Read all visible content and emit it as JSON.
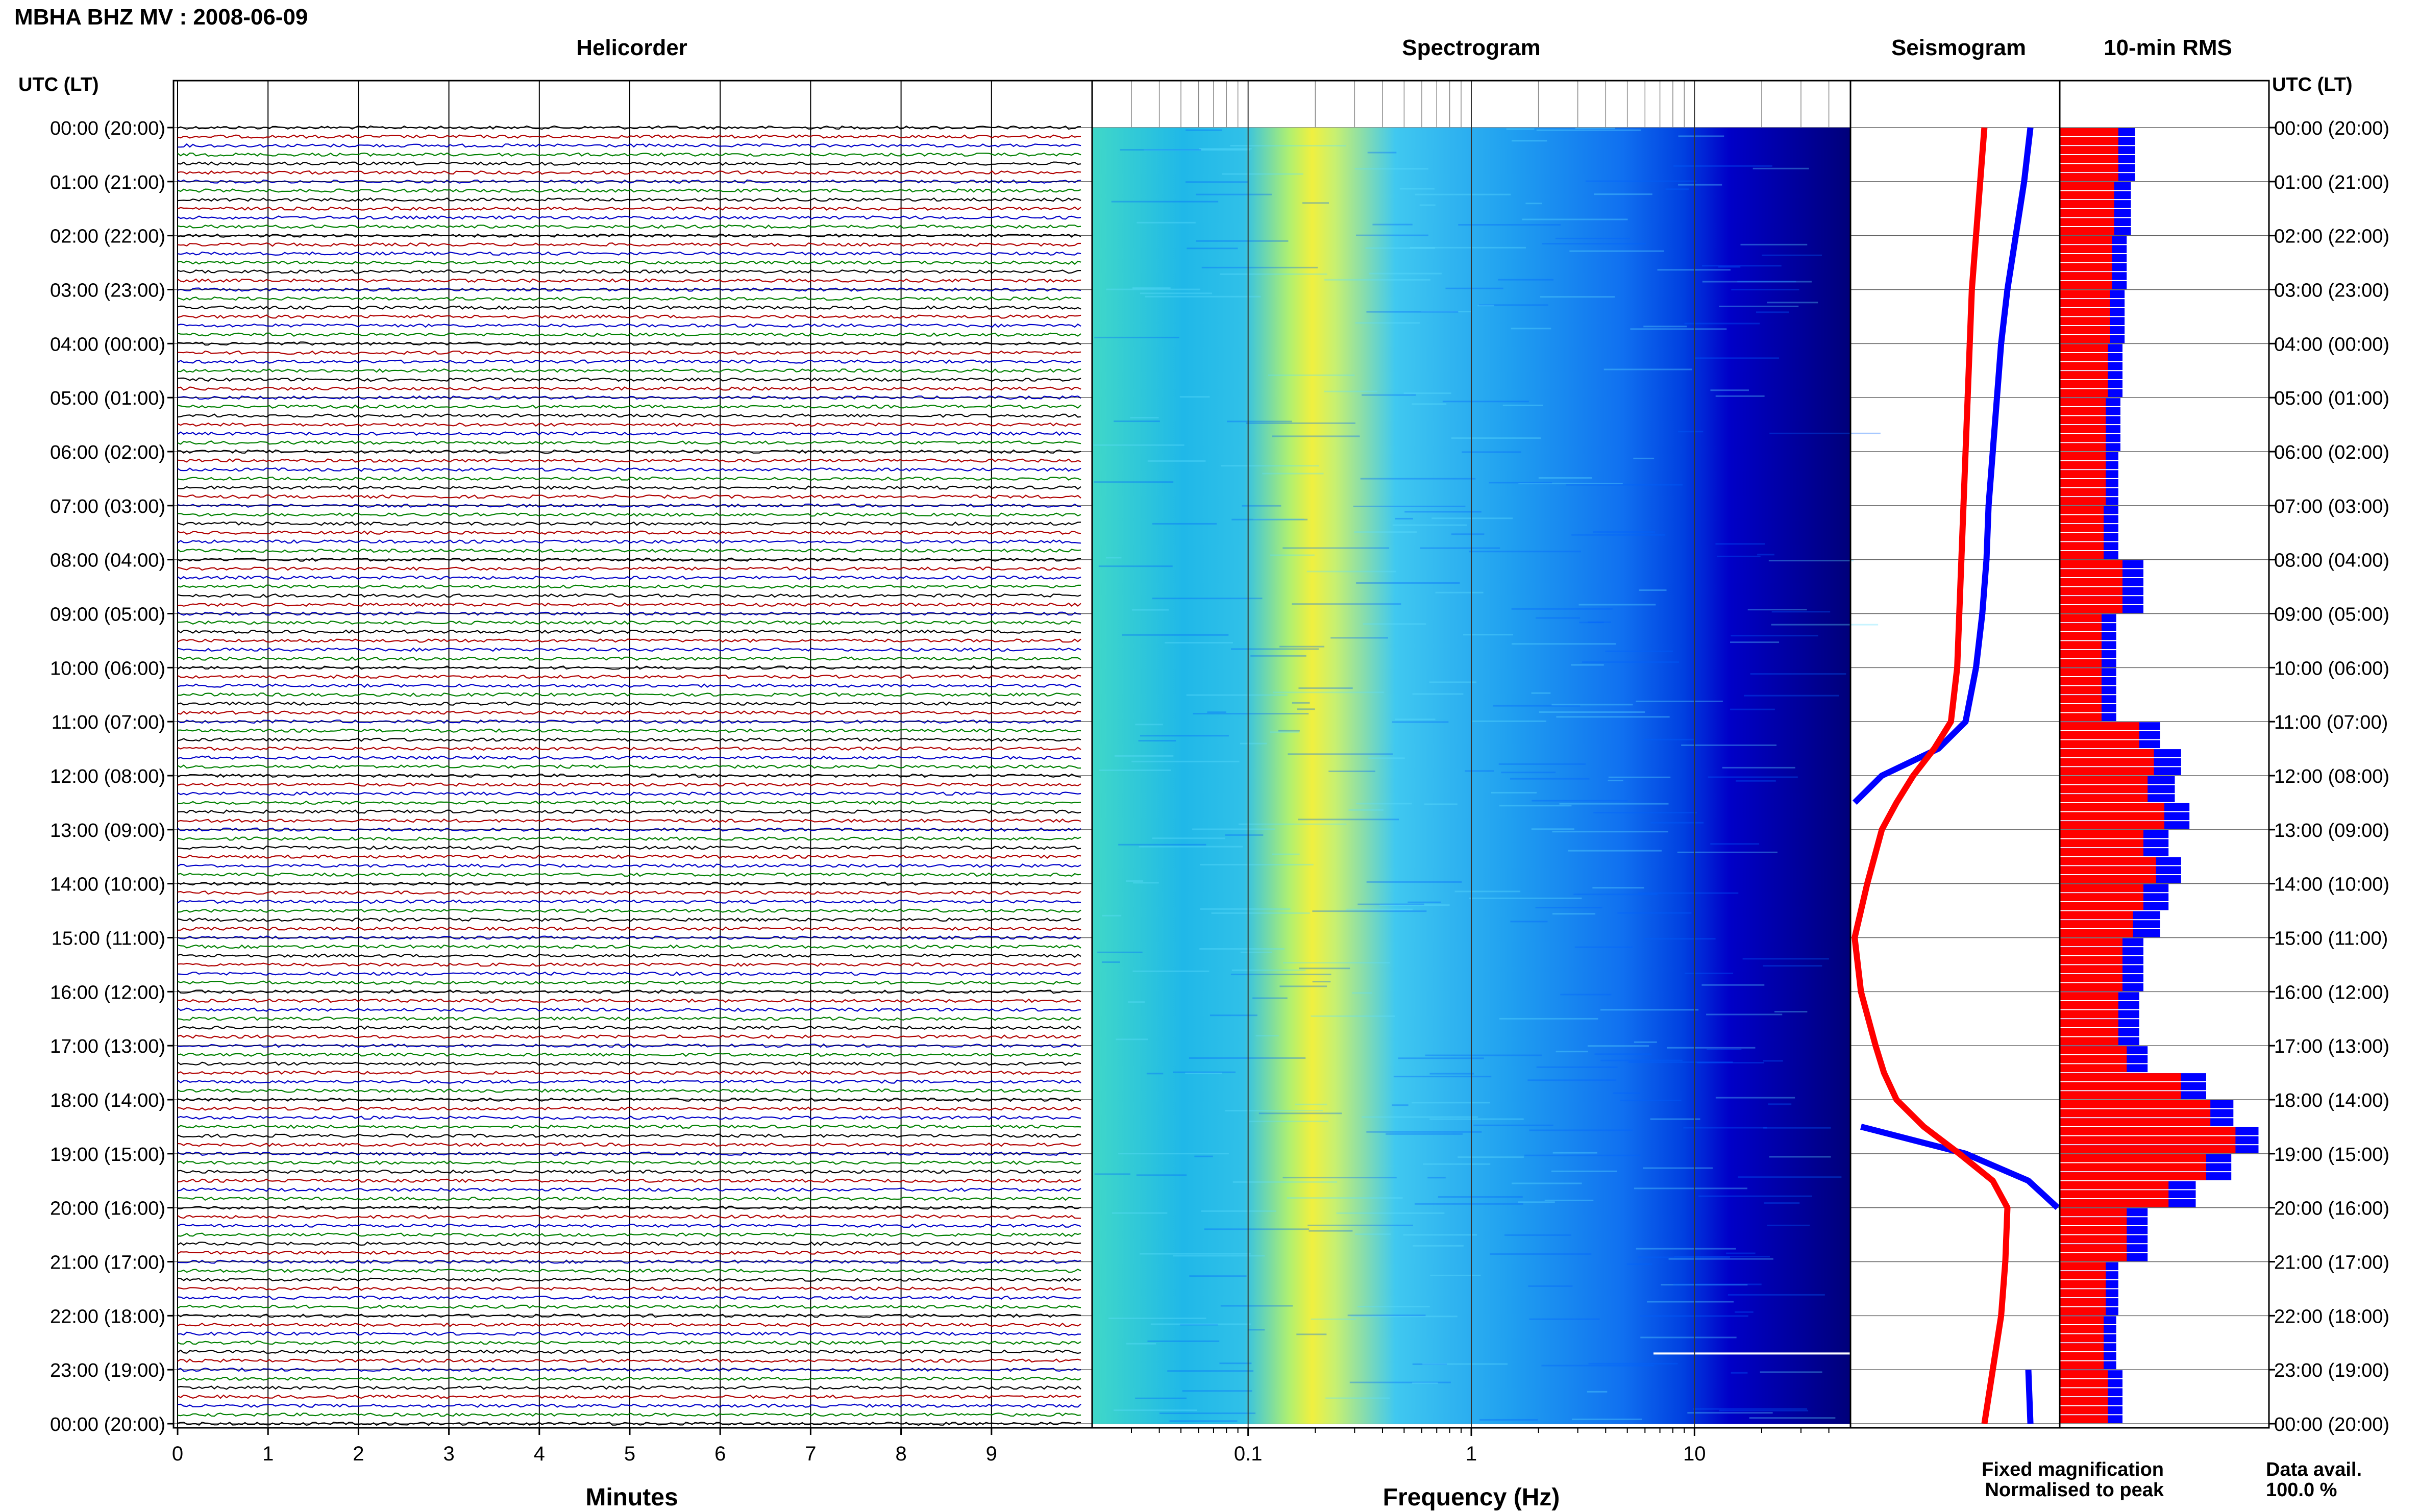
{
  "page_title": "MBHA BHZ MV : 2008-06-09",
  "colors": {
    "trace_cycle": [
      "#000000",
      "#b00000",
      "#0000c8",
      "#008000"
    ],
    "fixed_magnification": "#0000ff",
    "normalised_to_peak": "#ff0000",
    "rms_fixed": "#0000ff",
    "rms_normalised": "#ff0000",
    "spectrogram_colormap": [
      "#00007a",
      "#0000d0",
      "#0050ff",
      "#00a0ff",
      "#40d8e0",
      "#80f0a0",
      "#e8f040",
      "#ffd000"
    ]
  },
  "time_labels": {
    "left_header": "UTC (LT)",
    "right_header": "UTC (LT)",
    "ticks": [
      "00:00 (20:00)",
      "01:00 (21:00)",
      "02:00 (22:00)",
      "03:00 (23:00)",
      "04:00 (00:00)",
      "05:00 (01:00)",
      "06:00 (02:00)",
      "07:00 (03:00)",
      "08:00 (04:00)",
      "09:00 (05:00)",
      "10:00 (06:00)",
      "11:00 (07:00)",
      "12:00 (08:00)",
      "13:00 (09:00)",
      "14:00 (10:00)",
      "15:00 (11:00)",
      "16:00 (12:00)",
      "17:00 (13:00)",
      "18:00 (14:00)",
      "19:00 (15:00)",
      "20:00 (16:00)",
      "21:00 (17:00)",
      "22:00 (18:00)",
      "23:00 (19:00)",
      "00:00 (20:00)"
    ]
  },
  "panels": {
    "helicorder": {
      "title": "Helicorder",
      "xlabel": "Minutes",
      "xticks": [
        "0",
        "1",
        "2",
        "3",
        "4",
        "5",
        "6",
        "7",
        "8",
        "9"
      ],
      "xlim": [
        0,
        10
      ],
      "lines_per_hour": 6
    },
    "spectrogram": {
      "title": "Spectrogram",
      "xlabel": "Frequency (Hz)",
      "xticks": [
        "0.1",
        "1",
        "10"
      ],
      "xscale": "log",
      "xlim": [
        0.02,
        50
      ]
    },
    "seismogram": {
      "title": "Seismogram"
    },
    "rms": {
      "title": "10-min RMS"
    }
  },
  "legend": {
    "fixed": "Fixed magnification",
    "normalised": "Normalised to peak"
  },
  "data_avail": {
    "label": "Data avail.",
    "value": "100.0 %"
  },
  "chart_data": [
    {
      "type": "line",
      "name": "Seismogram",
      "x_hours": [
        0,
        1,
        2,
        3,
        4,
        5,
        6,
        7,
        8,
        9,
        10,
        11,
        11.5,
        12,
        12.5,
        13,
        14,
        15,
        16,
        17,
        17.5,
        18,
        18.5,
        19,
        19.5,
        20,
        21,
        22,
        23,
        24
      ],
      "series": [
        {
          "name": "Fixed magnification",
          "values": [
            0.86,
            0.83,
            0.79,
            0.75,
            0.72,
            0.7,
            0.68,
            0.66,
            0.65,
            0.63,
            0.6,
            0.55,
            0.42,
            0.15,
            0.02,
            null,
            null,
            null,
            null,
            null,
            null,
            null,
            0.05,
            0.55,
            0.85,
            0.99,
            null,
            null,
            0.85,
            0.86
          ]
        },
        {
          "name": "Normalised to peak",
          "values": [
            0.64,
            0.62,
            0.6,
            0.58,
            0.57,
            0.56,
            0.55,
            0.54,
            0.53,
            0.52,
            0.51,
            0.48,
            0.4,
            0.3,
            0.22,
            0.15,
            0.08,
            0.02,
            0.05,
            0.12,
            0.16,
            0.22,
            0.35,
            0.52,
            0.68,
            0.75,
            0.74,
            0.72,
            0.68,
            0.64
          ]
        }
      ]
    },
    {
      "type": "bar",
      "name": "10-min RMS",
      "x_hours_start": [
        0,
        1,
        2,
        3,
        4,
        5,
        6,
        7,
        8,
        9,
        10,
        11,
        11.5,
        12,
        12.5,
        13,
        13.5,
        14,
        14.5,
        15,
        16,
        17,
        17.5,
        18,
        18.5,
        19,
        19.5,
        20,
        21,
        22,
        23
      ],
      "series": [
        {
          "name": "Fixed magnification",
          "values": [
            0.36,
            0.34,
            0.32,
            0.31,
            0.3,
            0.29,
            0.28,
            0.28,
            0.4,
            0.27,
            0.27,
            0.48,
            0.58,
            0.55,
            0.62,
            0.52,
            0.58,
            0.52,
            0.48,
            0.4,
            0.38,
            0.42,
            0.7,
            0.83,
            0.95,
            0.82,
            0.65,
            0.42,
            0.28,
            0.27,
            0.3
          ]
        },
        {
          "name": "Normalised to peak",
          "values": [
            0.28,
            0.26,
            0.25,
            0.24,
            0.23,
            0.22,
            0.22,
            0.21,
            0.3,
            0.2,
            0.2,
            0.38,
            0.45,
            0.42,
            0.5,
            0.4,
            0.46,
            0.4,
            0.35,
            0.3,
            0.28,
            0.32,
            0.58,
            0.72,
            0.84,
            0.7,
            0.52,
            0.32,
            0.22,
            0.21,
            0.23
          ]
        }
      ]
    }
  ]
}
